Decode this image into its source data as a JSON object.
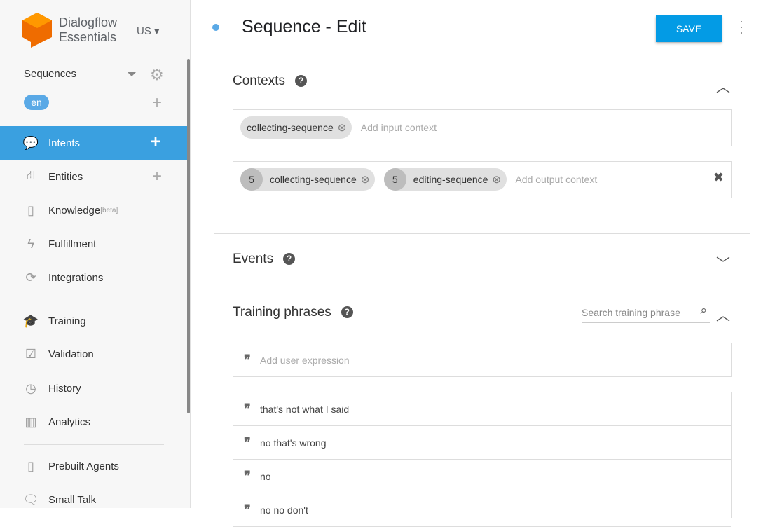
{
  "app": {
    "name_line1": "Dialogflow",
    "name_line2": "Essentials",
    "region": "US"
  },
  "agent": {
    "name": "Sequences",
    "language": "en"
  },
  "sidebar": {
    "items": [
      {
        "label": "Intents",
        "icon": "chat-icon",
        "active": true
      },
      {
        "label": "Entities",
        "icon": "hierarchy-icon"
      },
      {
        "label": "Knowledge",
        "badge": "[beta]",
        "icon": "book-icon"
      },
      {
        "label": "Fulfillment",
        "icon": "bolt-icon"
      },
      {
        "label": "Integrations",
        "icon": "sync-icon"
      },
      {
        "label": "Training",
        "icon": "graduation-cap-icon"
      },
      {
        "label": "Validation",
        "icon": "checkbox-icon"
      },
      {
        "label": "History",
        "icon": "clock-icon"
      },
      {
        "label": "Analytics",
        "icon": "bar-chart-icon"
      },
      {
        "label": "Prebuilt Agents",
        "icon": "book-icon"
      },
      {
        "label": "Small Talk",
        "icon": "chat-icon"
      }
    ]
  },
  "header": {
    "title": "Sequence - Edit",
    "save_label": "SAVE"
  },
  "contexts": {
    "title": "Contexts",
    "input": [
      {
        "name": "collecting-sequence"
      }
    ],
    "input_placeholder": "Add input context",
    "output": [
      {
        "lifespan": "5",
        "name": "collecting-sequence"
      },
      {
        "lifespan": "5",
        "name": "editing-sequence"
      }
    ],
    "output_placeholder": "Add output context"
  },
  "events": {
    "title": "Events"
  },
  "training": {
    "title": "Training phrases",
    "search_placeholder": "Search training phrase",
    "add_placeholder": "Add user expression",
    "phrases": [
      "that's not what I said",
      "no that's wrong",
      "no",
      "no no don't"
    ]
  },
  "colors": {
    "accent": "#3aa0e0",
    "save": "#039be5"
  }
}
